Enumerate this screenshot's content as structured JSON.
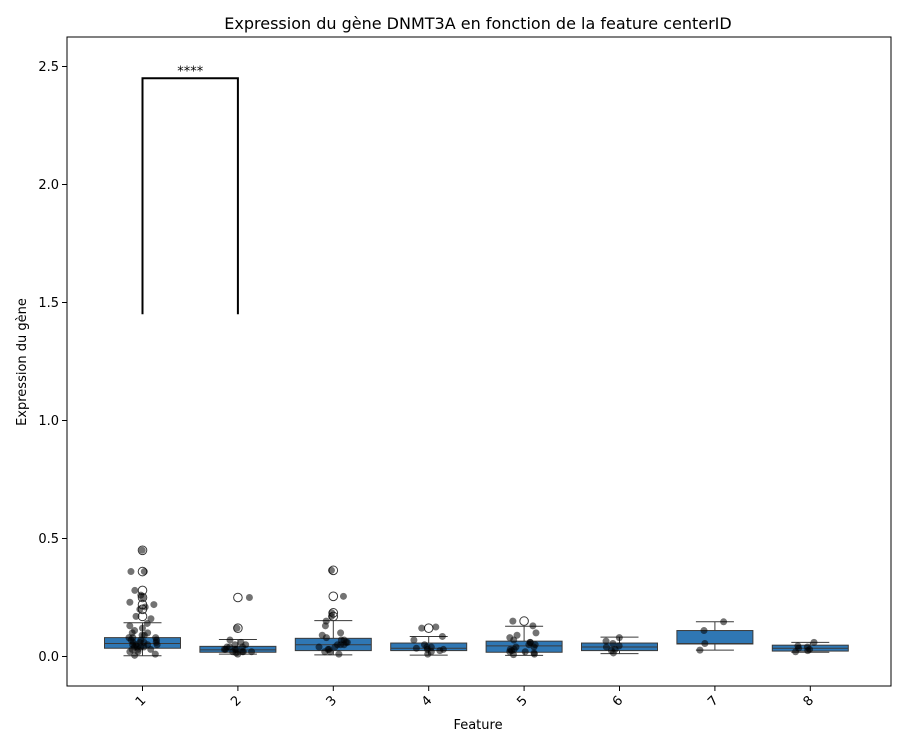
{
  "chart_data": {
    "type": "box",
    "title": "Expression du gène DNMT3A en fonction de la feature centerID",
    "xlabel": "Feature",
    "ylabel": "Expression du gène",
    "categories": [
      "1",
      "2",
      "3",
      "4",
      "5",
      "6",
      "7",
      "8"
    ],
    "ylim": [
      -0.125,
      2.625
    ],
    "yticks": [
      0.0,
      0.5,
      1.0,
      1.5,
      2.0,
      2.5
    ],
    "ytick_labels": [
      "0.0",
      "0.5",
      "1.0",
      "1.5",
      "2.0",
      "2.5"
    ],
    "box_color": "#2f77b4",
    "boxes": [
      {
        "category": "1",
        "whisker_low": 0.003,
        "q1": 0.035,
        "median": 0.055,
        "q3": 0.08,
        "whisker_high": 0.143,
        "outliers": [
          0.17,
          0.2,
          0.22,
          0.25,
          0.28,
          0.36,
          0.45
        ]
      },
      {
        "category": "2",
        "whisker_low": 0.01,
        "q1": 0.018,
        "median": 0.028,
        "q3": 0.043,
        "whisker_high": 0.072,
        "outliers": [
          0.12,
          0.25
        ]
      },
      {
        "category": "3",
        "whisker_low": 0.007,
        "q1": 0.025,
        "median": 0.05,
        "q3": 0.077,
        "whisker_high": 0.152,
        "outliers": [
          0.17,
          0.185,
          0.255,
          0.365
        ]
      },
      {
        "category": "4",
        "whisker_low": 0.006,
        "q1": 0.025,
        "median": 0.035,
        "q3": 0.057,
        "whisker_high": 0.085,
        "outliers": [
          0.12
        ]
      },
      {
        "category": "5",
        "whisker_low": 0.005,
        "q1": 0.018,
        "median": 0.045,
        "q3": 0.065,
        "whisker_high": 0.128,
        "outliers": [
          0.15
        ]
      },
      {
        "category": "6",
        "whisker_low": 0.012,
        "q1": 0.025,
        "median": 0.04,
        "q3": 0.057,
        "whisker_high": 0.082,
        "outliers": []
      },
      {
        "category": "7",
        "whisker_low": 0.027,
        "q1": 0.053,
        "median": 0.055,
        "q3": 0.11,
        "whisker_high": 0.147,
        "outliers": []
      },
      {
        "category": "8",
        "whisker_low": 0.018,
        "q1": 0.023,
        "median": 0.035,
        "q3": 0.048,
        "whisker_high": 0.06,
        "outliers": []
      }
    ],
    "strip_points": [
      {
        "category": "1",
        "values": [
          0.45,
          0.36,
          0.36,
          0.28,
          0.26,
          0.25,
          0.23,
          0.22,
          0.21,
          0.2,
          0.17,
          0.16,
          0.14,
          0.13,
          0.12,
          0.11,
          0.1,
          0.1,
          0.09,
          0.09,
          0.08,
          0.08,
          0.08,
          0.07,
          0.07,
          0.07,
          0.06,
          0.06,
          0.06,
          0.06,
          0.05,
          0.05,
          0.05,
          0.05,
          0.04,
          0.04,
          0.04,
          0.04,
          0.03,
          0.03,
          0.03,
          0.02,
          0.02,
          0.01,
          0.005
        ]
      },
      {
        "category": "2",
        "values": [
          0.25,
          0.12,
          0.07,
          0.06,
          0.05,
          0.05,
          0.04,
          0.04,
          0.04,
          0.03,
          0.03,
          0.03,
          0.03,
          0.02,
          0.02,
          0.02,
          0.02,
          0.015,
          0.01
        ]
      },
      {
        "category": "3",
        "values": [
          0.365,
          0.255,
          0.185,
          0.17,
          0.15,
          0.13,
          0.1,
          0.09,
          0.08,
          0.07,
          0.07,
          0.06,
          0.06,
          0.05,
          0.05,
          0.05,
          0.04,
          0.04,
          0.03,
          0.03,
          0.02,
          0.02,
          0.01
        ]
      },
      {
        "category": "4",
        "values": [
          0.125,
          0.12,
          0.085,
          0.07,
          0.05,
          0.04,
          0.04,
          0.035,
          0.03,
          0.03,
          0.025,
          0.02,
          0.01
        ]
      },
      {
        "category": "5",
        "values": [
          0.15,
          0.13,
          0.1,
          0.09,
          0.08,
          0.07,
          0.06,
          0.06,
          0.05,
          0.05,
          0.04,
          0.04,
          0.03,
          0.03,
          0.025,
          0.02,
          0.02,
          0.015,
          0.01,
          0.008
        ]
      },
      {
        "category": "6",
        "values": [
          0.08,
          0.065,
          0.055,
          0.045,
          0.04,
          0.03,
          0.025,
          0.015
        ]
      },
      {
        "category": "7",
        "values": [
          0.147,
          0.11,
          0.055,
          0.027
        ]
      },
      {
        "category": "8",
        "values": [
          0.06,
          0.045,
          0.04,
          0.035,
          0.03,
          0.025,
          0.02
        ]
      }
    ],
    "annotation": {
      "text": "****",
      "from": "1",
      "to": "2",
      "y_bottom": 1.45,
      "y_top": 2.45
    }
  }
}
